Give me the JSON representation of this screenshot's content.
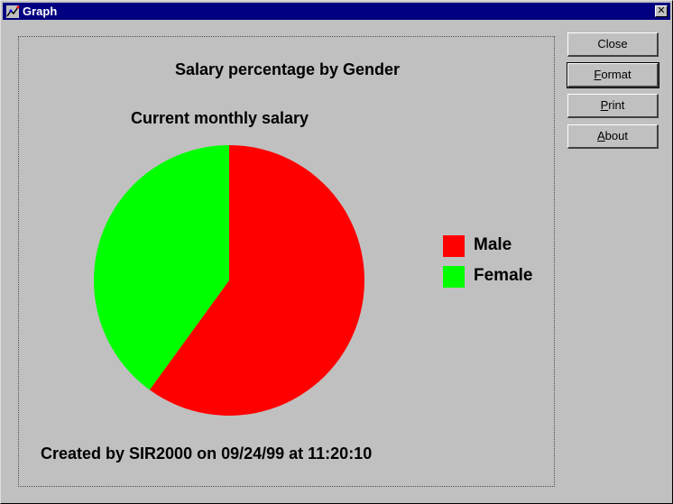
{
  "window": {
    "title": "Graph",
    "close_glyph": "✕"
  },
  "buttons": [
    {
      "label": "Close",
      "accel": "",
      "rest": "Close"
    },
    {
      "label": "Format",
      "accel": "F",
      "rest": "ormat"
    },
    {
      "label": "Print",
      "accel": "P",
      "rest": "rint"
    },
    {
      "label": "About",
      "accel": "A",
      "rest": "bout"
    }
  ],
  "chart_data": {
    "type": "pie",
    "title": "Salary percentage by Gender",
    "subtitle": "Current monthly salary",
    "slices": [
      {
        "label": "Male",
        "value": 60,
        "color": "#ff0000"
      },
      {
        "label": "Female",
        "value": 40,
        "color": "#00ff00"
      }
    ],
    "start_angle_deg": 0,
    "legend_placement": "right",
    "footer": "Created by SIR2000 on 09/24/99 at 11:20:10"
  }
}
